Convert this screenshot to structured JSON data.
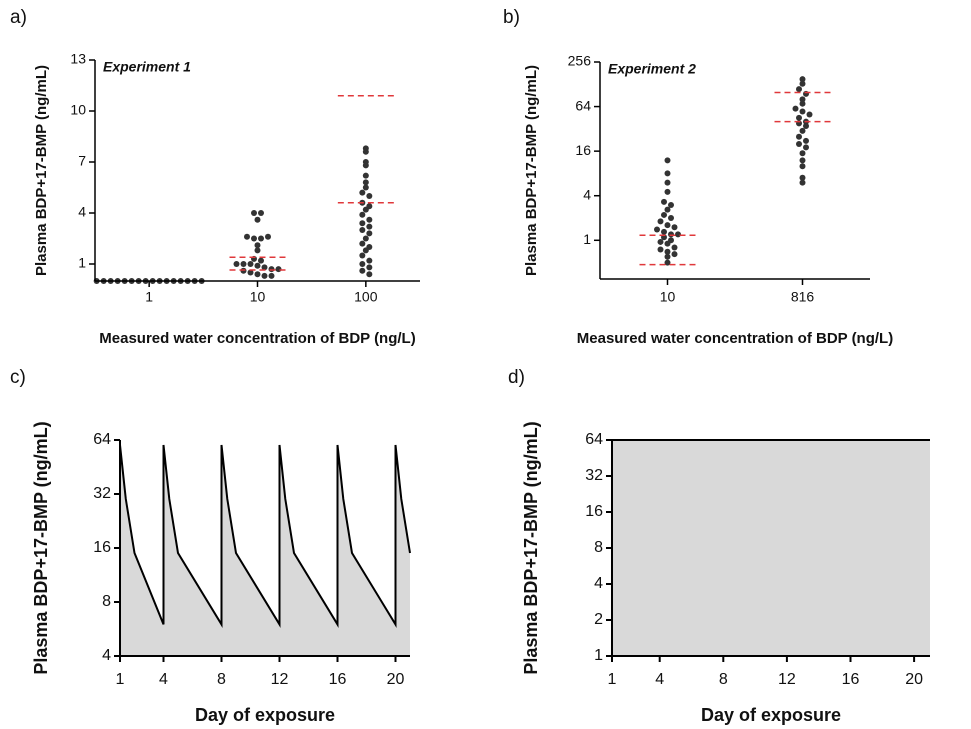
{
  "chart_data": [
    {
      "type": "strip",
      "panel_label": "a)",
      "title": "Experiment 1",
      "y_label": "Plasma BDP+17-BMP (ng/mL)",
      "x_label": "Measured water concentration of BDP (ng/L)",
      "categories": [
        "1",
        "10",
        "100"
      ],
      "values": [
        [
          0,
          0,
          0,
          0,
          0,
          0,
          0,
          0,
          0,
          0,
          0,
          0,
          0,
          0,
          0,
          0
        ],
        [
          4.0,
          4.0,
          3.6,
          2.6,
          2.5,
          2.5,
          2.6,
          2.1,
          1.8,
          1.3,
          1.2,
          1.0,
          1.0,
          1.0,
          0.9,
          0.8,
          0.7,
          0.7,
          0.6,
          0.5,
          0.4,
          0.3,
          0.3
        ],
        [
          7.8,
          7.6,
          7.0,
          6.8,
          6.2,
          5.8,
          5.5,
          5.2,
          5.0,
          4.6,
          4.4,
          4.2,
          3.9,
          3.6,
          3.4,
          3.2,
          3.0,
          2.8,
          2.5,
          2.2,
          2.0,
          1.8,
          1.5,
          1.2,
          1.0,
          0.8,
          0.6,
          0.4
        ]
      ],
      "lines": [
        [],
        [
          0.65,
          1.4
        ],
        [
          4.6,
          10.9
        ]
      ],
      "line_color": "#e0383b",
      "color": "#333333",
      "ylim": [
        0,
        13
      ],
      "yticks": [
        1,
        4,
        7,
        10,
        13
      ],
      "yscale": "linear"
    },
    {
      "type": "strip",
      "panel_label": "b)",
      "title": "Experiment 2",
      "y_label": "Plasma BDP+17-BMP (ng/mL)",
      "x_label": "Measured water concentration of BDP (ng/L)",
      "categories": [
        "10",
        "816"
      ],
      "values": [
        [
          12,
          8,
          6,
          4.5,
          3.3,
          3,
          2.6,
          2.2,
          2,
          1.8,
          1.6,
          1.5,
          1.4,
          1.3,
          1.2,
          1.2,
          1.1,
          1.0,
          0.95,
          0.9,
          0.8,
          0.75,
          0.7,
          0.65,
          0.6,
          0.5
        ],
        [
          150,
          130,
          110,
          95,
          80,
          70,
          60,
          55,
          50,
          45,
          40,
          38,
          35,
          30,
          25,
          22,
          20,
          18,
          15,
          12,
          10,
          7,
          6
        ]
      ],
      "lines": [
        [
          0.47,
          1.17
        ],
        [
          40,
          99
        ]
      ],
      "line_color": "#e0383b",
      "color": "#333333",
      "ylim": [
        0.3,
        256
      ],
      "yticks": [
        1,
        4,
        16,
        64,
        256
      ],
      "yscale": "log2"
    },
    {
      "type": "area",
      "panel_label": "c)",
      "y_label": "Plasma BDP+17-BMP (ng/mL)",
      "x_label": "Day of exposure",
      "x": [
        1,
        1.4,
        2,
        4,
        4,
        4.4,
        5,
        8,
        8,
        8.4,
        9,
        12,
        12,
        12.4,
        13,
        16,
        16,
        16.4,
        17,
        20,
        20,
        20.4,
        21
      ],
      "values": [
        60,
        30,
        15,
        6,
        60,
        30,
        15,
        6,
        60,
        30,
        15,
        6,
        60,
        30,
        15,
        6,
        60,
        30,
        15,
        6,
        60,
        30,
        15
      ],
      "color": "#000000",
      "fill": "#d9d9d9",
      "xlim": [
        1,
        21
      ],
      "xticks": [
        1,
        4,
        8,
        12,
        16,
        20
      ],
      "ylim": [
        4,
        64
      ],
      "yticks": [
        4,
        8,
        16,
        32,
        64
      ],
      "yscale": "log2"
    },
    {
      "type": "area",
      "panel_label": "d)",
      "y_label": "Plasma BDP+17-BMP (ng/mL)",
      "x_label": "Day of exposure",
      "x": [
        1,
        21
      ],
      "values": [
        64,
        64
      ],
      "color": "#000000",
      "fill": "#d9d9d9",
      "xlim": [
        1,
        21
      ],
      "xticks": [
        1,
        4,
        8,
        12,
        16,
        20
      ],
      "ylim": [
        1,
        64
      ],
      "yticks": [
        1,
        2,
        4,
        8,
        16,
        32,
        64
      ],
      "yscale": "log2"
    }
  ]
}
